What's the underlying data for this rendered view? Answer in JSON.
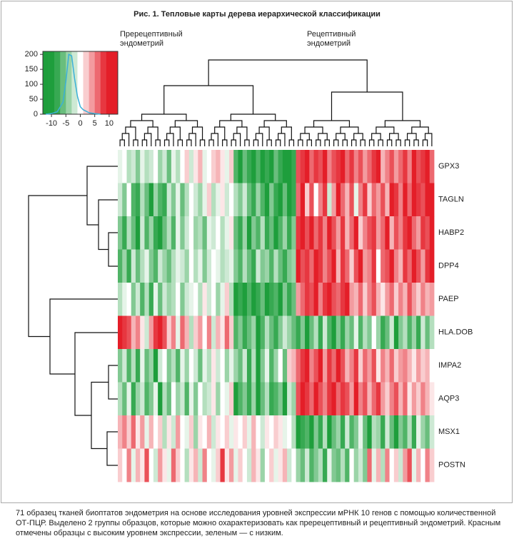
{
  "chart_data": {
    "type": "heatmap",
    "title": "Рис. 1. Тепловые карты дерева иерархической классификации",
    "annotations": [
      [
        "Пререцептивный",
        "эндометрий"
      ],
      [
        "Рецептивный",
        "эндометрий"
      ]
    ],
    "rows": [
      "GPX3",
      "TAGLN",
      "HABP2",
      "DPP4",
      "PAEP",
      "HLA.DOB",
      "IMPA2",
      "AQP3",
      "MSX1",
      "POSTN"
    ],
    "low_color": "#1e9e3c",
    "high_color": "#e41e28",
    "values": [
      [
        -1,
        0,
        -3,
        -2,
        -5,
        -1,
        -3,
        -2,
        0,
        -4,
        -2,
        -6,
        -1,
        -3,
        0,
        2,
        -2,
        1,
        3,
        -1,
        0,
        2,
        3,
        1,
        -1,
        2,
        -7,
        -9,
        -6,
        -8,
        -9,
        -7,
        -9,
        -8,
        -9,
        -6,
        -8,
        -9,
        -9,
        -8,
        7,
        8,
        9,
        6,
        8,
        7,
        9,
        5,
        7,
        8,
        9,
        6,
        8,
        5,
        7,
        4,
        6,
        8,
        9,
        3,
        5,
        7,
        4,
        6,
        8,
        5,
        9,
        7,
        8,
        9,
        6
      ],
      [
        -2,
        -5,
        0,
        -7,
        -8,
        -3,
        -6,
        -9,
        -4,
        -7,
        -8,
        -2,
        -5,
        -1,
        -6,
        -3,
        0,
        -2,
        -4,
        -1,
        2,
        -3,
        -1,
        1,
        -2,
        0,
        -3,
        -5,
        -2,
        -6,
        -8,
        -4,
        -7,
        -9,
        -5,
        -8,
        -9,
        -6,
        -9,
        -8,
        6,
        9,
        2,
        7,
        0,
        5,
        8,
        -2,
        4,
        9,
        6,
        3,
        7,
        -1,
        5,
        8,
        2,
        6,
        4,
        7,
        3,
        9,
        8,
        5,
        9,
        6,
        9,
        8,
        7,
        9,
        9
      ],
      [
        -5,
        -8,
        -3,
        -6,
        -9,
        -2,
        -7,
        -4,
        -8,
        -9,
        -6,
        -3,
        -7,
        -1,
        -5,
        -2,
        0,
        -4,
        -3,
        -6,
        -1,
        -2,
        0,
        -3,
        -1,
        1,
        -6,
        -8,
        -4,
        -9,
        -5,
        -7,
        -3,
        -8,
        -6,
        -9,
        -7,
        -4,
        -8,
        -5,
        8,
        9,
        7,
        9,
        6,
        8,
        5,
        9,
        7,
        4,
        8,
        3,
        6,
        9,
        2,
        5,
        7,
        8,
        4,
        6,
        9,
        3,
        7,
        5,
        8,
        9,
        6,
        4,
        8,
        7,
        9
      ],
      [
        -7,
        -4,
        -8,
        -2,
        -6,
        -3,
        -1,
        -5,
        -7,
        -2,
        -4,
        -6,
        -3,
        -1,
        -2,
        -4,
        0,
        -3,
        -1,
        -5,
        -2,
        0,
        -1,
        -3,
        -2,
        -1,
        -5,
        -7,
        -3,
        -6,
        -8,
        -2,
        -5,
        -4,
        -7,
        -3,
        -6,
        -8,
        -5,
        -4,
        9,
        7,
        8,
        6,
        9,
        8,
        5,
        7,
        9,
        3,
        8,
        6,
        2,
        7,
        9,
        4,
        5,
        8,
        0,
        6,
        7,
        9,
        5,
        3,
        8,
        6,
        9,
        7,
        4,
        8,
        9
      ],
      [
        -3,
        -1,
        0,
        -5,
        -2,
        -7,
        -3,
        -8,
        -1,
        -6,
        -2,
        -4,
        -3,
        0,
        -5,
        -2,
        -1,
        0,
        -3,
        1,
        -2,
        0,
        -4,
        -1,
        2,
        -3,
        -9,
        -8,
        -9,
        -7,
        -9,
        -8,
        -6,
        -9,
        -8,
        -7,
        -9,
        -5,
        -8,
        -6,
        4,
        6,
        8,
        7,
        9,
        5,
        8,
        9,
        7,
        6,
        8,
        9,
        4,
        3,
        6,
        2,
        5,
        7,
        3,
        1,
        4,
        6,
        2,
        5,
        3,
        7,
        4,
        2,
        5,
        3,
        4
      ],
      [
        9,
        8,
        7,
        3,
        5,
        1,
        -2,
        4,
        8,
        9,
        7,
        2,
        5,
        -1,
        6,
        3,
        -3,
        2,
        4,
        0,
        5,
        -2,
        3,
        1,
        6,
        2,
        -7,
        -5,
        -8,
        -6,
        -4,
        -9,
        -7,
        -3,
        -6,
        -8,
        -5,
        -2,
        -4,
        -6,
        -8,
        -5,
        -9,
        -6,
        -3,
        -8,
        -2,
        -7,
        -9,
        -5,
        -8,
        -4,
        -6,
        -1,
        -7,
        -3,
        -5,
        0,
        -4,
        -8,
        -6,
        -2,
        -9,
        -5,
        -3,
        -7,
        -4,
        -8,
        -2,
        -6,
        -3
      ],
      [
        -5,
        -2,
        -7,
        -3,
        -8,
        -1,
        -6,
        -4,
        -9,
        -2,
        0,
        -5,
        -3,
        -7,
        -1,
        -4,
        0,
        -2,
        -6,
        -1,
        -3,
        1,
        -2,
        0,
        -4,
        -1,
        -4,
        -6,
        -2,
        -8,
        -3,
        -9,
        -5,
        -1,
        -7,
        -4,
        0,
        -6,
        2,
        3,
        6,
        8,
        9,
        5,
        7,
        9,
        4,
        8,
        6,
        9,
        7,
        3,
        5,
        8,
        2,
        6,
        4,
        7,
        1,
        5,
        3,
        6,
        2,
        4,
        5,
        3,
        1,
        4,
        2,
        3,
        0
      ],
      [
        -3,
        -6,
        -1,
        -8,
        -4,
        -2,
        -7,
        -5,
        -1,
        -9,
        -3,
        -6,
        0,
        -4,
        -2,
        -7,
        -1,
        -5,
        0,
        -3,
        -2,
        1,
        -4,
        0,
        -1,
        2,
        -9,
        -7,
        -5,
        -8,
        -4,
        -9,
        -6,
        -3,
        -8,
        -7,
        -5,
        -9,
        -2,
        -4,
        7,
        9,
        8,
        6,
        9,
        7,
        5,
        8,
        9,
        6,
        8,
        7,
        4,
        9,
        5,
        7,
        3,
        6,
        8,
        4,
        2,
        5,
        7,
        3,
        6,
        1,
        4,
        2,
        5,
        3,
        1
      ],
      [
        3,
        5,
        2,
        6,
        1,
        4,
        -1,
        3,
        0,
        2,
        -3,
        1,
        -2,
        4,
        0,
        -1,
        2,
        -4,
        1,
        0,
        3,
        -2,
        1,
        0,
        2,
        -1,
        1,
        0,
        2,
        -1,
        3,
        0,
        -2,
        1,
        0,
        2,
        1,
        -1,
        0,
        -3,
        -9,
        -8,
        -7,
        -9,
        -5,
        -8,
        -3,
        -9,
        -6,
        -4,
        -8,
        -2,
        -7,
        -5,
        -1,
        -6,
        -9,
        -3,
        -4,
        -8,
        -2,
        -6,
        -9,
        -5,
        -7,
        -3,
        -8,
        -1,
        -4,
        -6,
        -2
      ],
      [
        2,
        0,
        5,
        -1,
        3,
        1,
        7,
        0,
        -2,
        4,
        1,
        -1,
        6,
        2,
        0,
        -3,
        1,
        3,
        -2,
        5,
        0,
        -1,
        2,
        8,
        1,
        4,
        -1,
        2,
        0,
        -2,
        3,
        1,
        -4,
        0,
        2,
        -1,
        1,
        3,
        -2,
        0,
        -4,
        -6,
        -2,
        -7,
        -5,
        -3,
        -8,
        -1,
        -5,
        -6,
        -3,
        -7,
        0,
        -4,
        -2,
        -5,
        6,
        -1,
        3,
        -3,
        5,
        0,
        2,
        -2,
        4,
        7,
        -1,
        3,
        0,
        5,
        2
      ]
    ],
    "key": {
      "xlim": [
        -13,
        13
      ],
      "xticks": [
        -10,
        -5,
        0,
        5,
        10
      ],
      "ylim": [
        0,
        210
      ],
      "yticks": [
        0,
        50,
        100,
        150,
        200
      ],
      "line_color": "#3ab0d8",
      "histogram": {
        "x": [
          -12,
          -10,
          -8,
          -6,
          -5,
          -4,
          -3,
          -2,
          -1,
          0,
          1,
          2,
          3,
          5,
          7
        ],
        "values": [
          0,
          2,
          8,
          40,
          110,
          200,
          195,
          120,
          60,
          25,
          15,
          10,
          5,
          2,
          0
        ]
      }
    },
    "caption": [
      "71 образец тканей биоптатов эндометрия на основе исследования уровней экспрессии мРНК 10 генов с помощью количественной",
      "ОТ-ПЦР. Выделено 2 группы образцов, которые можно охарактеризовать как пререцептивный и рецептивный эндометрий. Красным",
      "отмечены образцы с высоким уровнем экспрессии, зеленым — с низким."
    ]
  }
}
